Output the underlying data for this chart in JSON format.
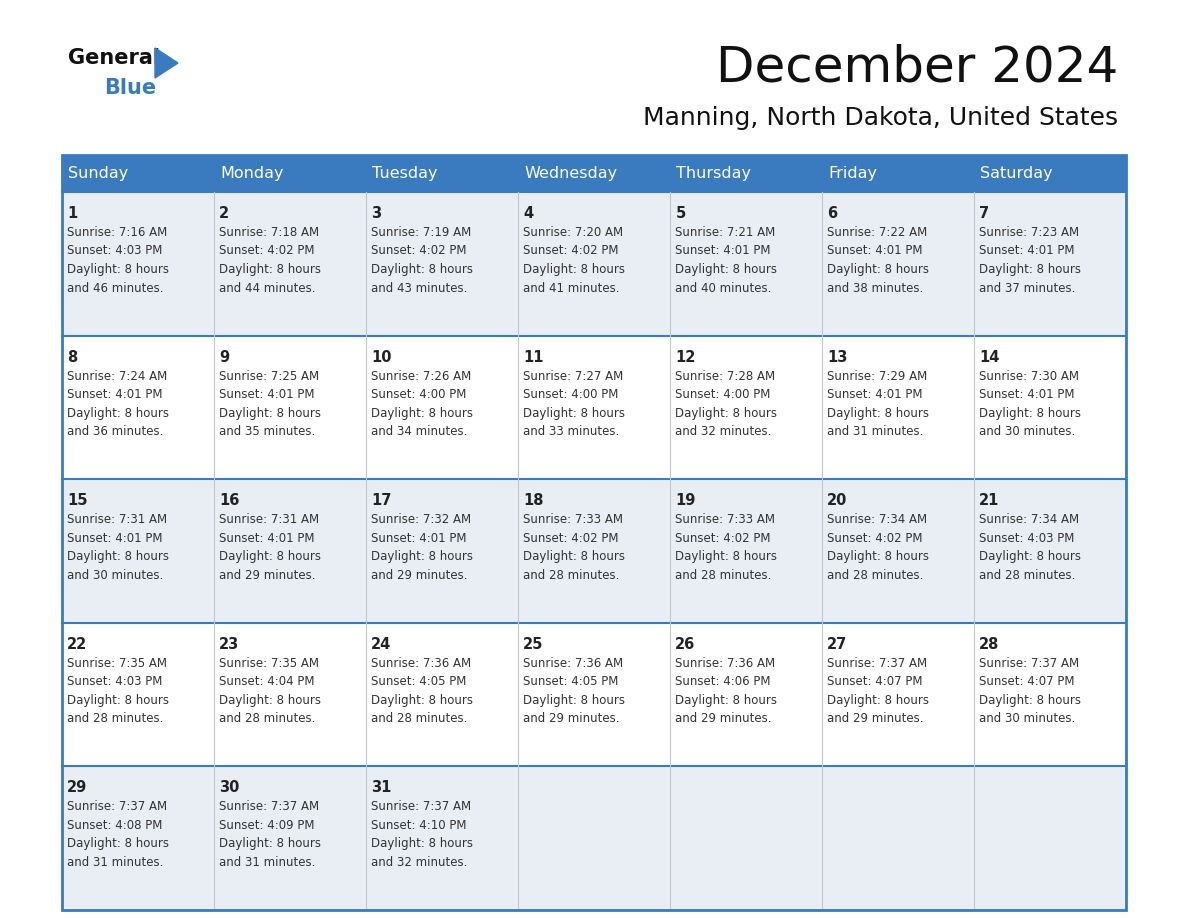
{
  "title": "December 2024",
  "subtitle": "Manning, North Dakota, United States",
  "header_bg": "#3a7bbf",
  "header_text_color": "#ffffff",
  "cell_bg_light": "#e8eef4",
  "cell_bg_white": "#ffffff",
  "grid_line_color": "#3a7bbf",
  "grid_line_thin": "#c0c8d0",
  "day_headers": [
    "Sunday",
    "Monday",
    "Tuesday",
    "Wednesday",
    "Thursday",
    "Friday",
    "Saturday"
  ],
  "days": [
    {
      "date": 1,
      "col": 0,
      "row": 0,
      "sunrise": "7:16 AM",
      "sunset": "4:03 PM",
      "daylight": "8 hours",
      "daylight2": "and 46 minutes."
    },
    {
      "date": 2,
      "col": 1,
      "row": 0,
      "sunrise": "7:18 AM",
      "sunset": "4:02 PM",
      "daylight": "8 hours",
      "daylight2": "and 44 minutes."
    },
    {
      "date": 3,
      "col": 2,
      "row": 0,
      "sunrise": "7:19 AM",
      "sunset": "4:02 PM",
      "daylight": "8 hours",
      "daylight2": "and 43 minutes."
    },
    {
      "date": 4,
      "col": 3,
      "row": 0,
      "sunrise": "7:20 AM",
      "sunset": "4:02 PM",
      "daylight": "8 hours",
      "daylight2": "and 41 minutes."
    },
    {
      "date": 5,
      "col": 4,
      "row": 0,
      "sunrise": "7:21 AM",
      "sunset": "4:01 PM",
      "daylight": "8 hours",
      "daylight2": "and 40 minutes."
    },
    {
      "date": 6,
      "col": 5,
      "row": 0,
      "sunrise": "7:22 AM",
      "sunset": "4:01 PM",
      "daylight": "8 hours",
      "daylight2": "and 38 minutes."
    },
    {
      "date": 7,
      "col": 6,
      "row": 0,
      "sunrise": "7:23 AM",
      "sunset": "4:01 PM",
      "daylight": "8 hours",
      "daylight2": "and 37 minutes."
    },
    {
      "date": 8,
      "col": 0,
      "row": 1,
      "sunrise": "7:24 AM",
      "sunset": "4:01 PM",
      "daylight": "8 hours",
      "daylight2": "and 36 minutes."
    },
    {
      "date": 9,
      "col": 1,
      "row": 1,
      "sunrise": "7:25 AM",
      "sunset": "4:01 PM",
      "daylight": "8 hours",
      "daylight2": "and 35 minutes."
    },
    {
      "date": 10,
      "col": 2,
      "row": 1,
      "sunrise": "7:26 AM",
      "sunset": "4:00 PM",
      "daylight": "8 hours",
      "daylight2": "and 34 minutes."
    },
    {
      "date": 11,
      "col": 3,
      "row": 1,
      "sunrise": "7:27 AM",
      "sunset": "4:00 PM",
      "daylight": "8 hours",
      "daylight2": "and 33 minutes."
    },
    {
      "date": 12,
      "col": 4,
      "row": 1,
      "sunrise": "7:28 AM",
      "sunset": "4:00 PM",
      "daylight": "8 hours",
      "daylight2": "and 32 minutes."
    },
    {
      "date": 13,
      "col": 5,
      "row": 1,
      "sunrise": "7:29 AM",
      "sunset": "4:01 PM",
      "daylight": "8 hours",
      "daylight2": "and 31 minutes."
    },
    {
      "date": 14,
      "col": 6,
      "row": 1,
      "sunrise": "7:30 AM",
      "sunset": "4:01 PM",
      "daylight": "8 hours",
      "daylight2": "and 30 minutes."
    },
    {
      "date": 15,
      "col": 0,
      "row": 2,
      "sunrise": "7:31 AM",
      "sunset": "4:01 PM",
      "daylight": "8 hours",
      "daylight2": "and 30 minutes."
    },
    {
      "date": 16,
      "col": 1,
      "row": 2,
      "sunrise": "7:31 AM",
      "sunset": "4:01 PM",
      "daylight": "8 hours",
      "daylight2": "and 29 minutes."
    },
    {
      "date": 17,
      "col": 2,
      "row": 2,
      "sunrise": "7:32 AM",
      "sunset": "4:01 PM",
      "daylight": "8 hours",
      "daylight2": "and 29 minutes."
    },
    {
      "date": 18,
      "col": 3,
      "row": 2,
      "sunrise": "7:33 AM",
      "sunset": "4:02 PM",
      "daylight": "8 hours",
      "daylight2": "and 28 minutes."
    },
    {
      "date": 19,
      "col": 4,
      "row": 2,
      "sunrise": "7:33 AM",
      "sunset": "4:02 PM",
      "daylight": "8 hours",
      "daylight2": "and 28 minutes."
    },
    {
      "date": 20,
      "col": 5,
      "row": 2,
      "sunrise": "7:34 AM",
      "sunset": "4:02 PM",
      "daylight": "8 hours",
      "daylight2": "and 28 minutes."
    },
    {
      "date": 21,
      "col": 6,
      "row": 2,
      "sunrise": "7:34 AM",
      "sunset": "4:03 PM",
      "daylight": "8 hours",
      "daylight2": "and 28 minutes."
    },
    {
      "date": 22,
      "col": 0,
      "row": 3,
      "sunrise": "7:35 AM",
      "sunset": "4:03 PM",
      "daylight": "8 hours",
      "daylight2": "and 28 minutes."
    },
    {
      "date": 23,
      "col": 1,
      "row": 3,
      "sunrise": "7:35 AM",
      "sunset": "4:04 PM",
      "daylight": "8 hours",
      "daylight2": "and 28 minutes."
    },
    {
      "date": 24,
      "col": 2,
      "row": 3,
      "sunrise": "7:36 AM",
      "sunset": "4:05 PM",
      "daylight": "8 hours",
      "daylight2": "and 28 minutes."
    },
    {
      "date": 25,
      "col": 3,
      "row": 3,
      "sunrise": "7:36 AM",
      "sunset": "4:05 PM",
      "daylight": "8 hours",
      "daylight2": "and 29 minutes."
    },
    {
      "date": 26,
      "col": 4,
      "row": 3,
      "sunrise": "7:36 AM",
      "sunset": "4:06 PM",
      "daylight": "8 hours",
      "daylight2": "and 29 minutes."
    },
    {
      "date": 27,
      "col": 5,
      "row": 3,
      "sunrise": "7:37 AM",
      "sunset": "4:07 PM",
      "daylight": "8 hours",
      "daylight2": "and 29 minutes."
    },
    {
      "date": 28,
      "col": 6,
      "row": 3,
      "sunrise": "7:37 AM",
      "sunset": "4:07 PM",
      "daylight": "8 hours",
      "daylight2": "and 30 minutes."
    },
    {
      "date": 29,
      "col": 0,
      "row": 4,
      "sunrise": "7:37 AM",
      "sunset": "4:08 PM",
      "daylight": "8 hours",
      "daylight2": "and 31 minutes."
    },
    {
      "date": 30,
      "col": 1,
      "row": 4,
      "sunrise": "7:37 AM",
      "sunset": "4:09 PM",
      "daylight": "8 hours",
      "daylight2": "and 31 minutes."
    },
    {
      "date": 31,
      "col": 2,
      "row": 4,
      "sunrise": "7:37 AM",
      "sunset": "4:10 PM",
      "daylight": "8 hours",
      "daylight2": "and 32 minutes."
    }
  ]
}
